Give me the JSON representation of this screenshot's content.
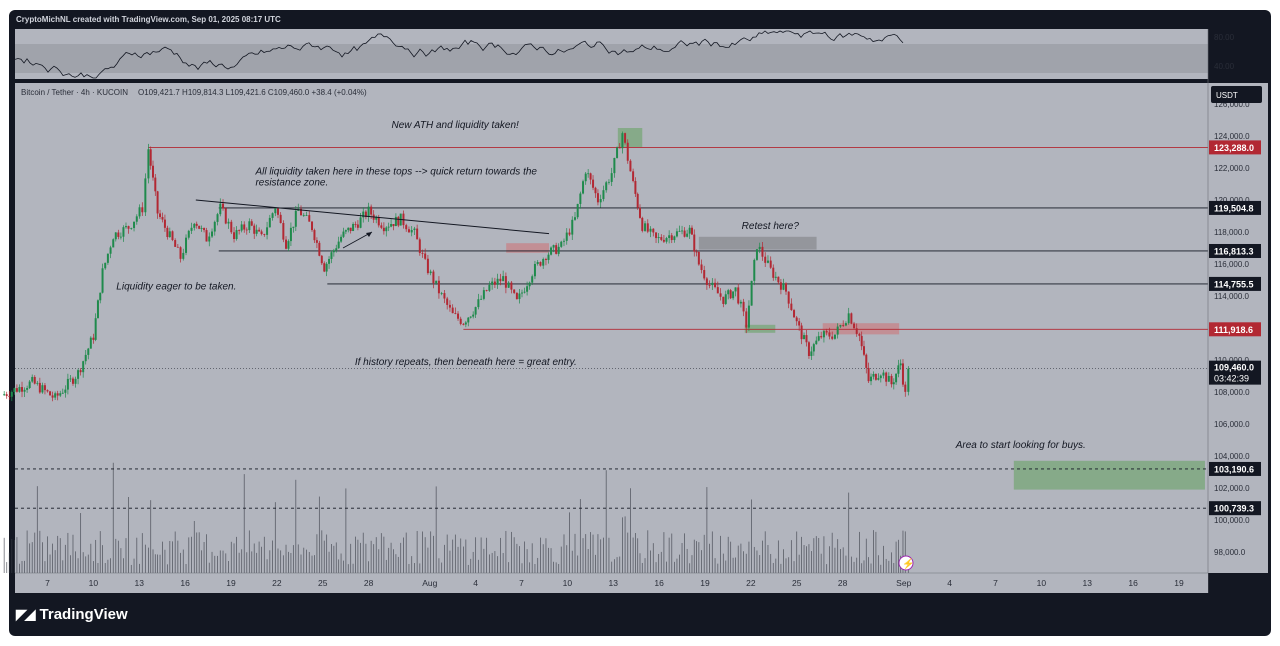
{
  "header": {
    "attribution": "CryptoMichNL created with TradingView.com, Sep 01, 2025 08:17 UTC"
  },
  "footer": {
    "brand": "TradingView",
    "logo_icon": "tradingview-logo-icon"
  },
  "colors": {
    "background": "#b2b5be",
    "frame": "#131722",
    "up": "#1f8a4c",
    "down": "#b22833",
    "green_zone": "#7ea880",
    "red_zone": "#c4888e",
    "gray_zone": "#8e9096"
  },
  "chart_data": {
    "type": "candlestick",
    "symbol_line": "Bitcoin / Tether · 4h · KUCOIN",
    "ohlc_readout": "O109,421.7  H109,814.3  L109,421.6  C109,460.0  +38.4 (+0.04%)",
    "currency": "USDT",
    "last_price": "109,460.0",
    "countdown": "03:42:39",
    "ylim": [
      96500,
      126000
    ],
    "y_ticks": [
      {
        "value": 98000,
        "label": "98,000.0"
      },
      {
        "value": 100000,
        "label": "100,000.0"
      },
      {
        "value": 102000,
        "label": "102,000.0"
      },
      {
        "value": 104000,
        "label": "104,000.0"
      },
      {
        "value": 106000,
        "label": "106,000.0"
      },
      {
        "value": 108000,
        "label": "108,000.0"
      },
      {
        "value": 110000,
        "label": "110,000.0"
      },
      {
        "value": 114000,
        "label": "114,000.0"
      },
      {
        "value": 116000,
        "label": "116,000.0"
      },
      {
        "value": 118000,
        "label": "118,000.0"
      },
      {
        "value": 120000,
        "label": "120,000.0"
      },
      {
        "value": 122000,
        "label": "122,000.0"
      },
      {
        "value": 124000,
        "label": "124,000.0"
      },
      {
        "value": 126000,
        "label": "126,000.0"
      }
    ],
    "x_ticks": [
      {
        "day": 7,
        "label": "7"
      },
      {
        "day": 10,
        "label": "10"
      },
      {
        "day": 13,
        "label": "13"
      },
      {
        "day": 16,
        "label": "16"
      },
      {
        "day": 19,
        "label": "19"
      },
      {
        "day": 22,
        "label": "22"
      },
      {
        "day": 25,
        "label": "25"
      },
      {
        "day": 28,
        "label": "28"
      },
      {
        "day": 32,
        "label": "Aug"
      },
      {
        "day": 35,
        "label": "4"
      },
      {
        "day": 38,
        "label": "7"
      },
      {
        "day": 41,
        "label": "10"
      },
      {
        "day": 44,
        "label": "13"
      },
      {
        "day": 47,
        "label": "16"
      },
      {
        "day": 50,
        "label": "19"
      },
      {
        "day": 53,
        "label": "22"
      },
      {
        "day": 56,
        "label": "25"
      },
      {
        "day": 59,
        "label": "28"
      },
      {
        "day": 63,
        "label": "Sep"
      },
      {
        "day": 66,
        "label": "4"
      },
      {
        "day": 69,
        "label": "7"
      },
      {
        "day": 72,
        "label": "10"
      },
      {
        "day": 75,
        "label": "13"
      },
      {
        "day": 78,
        "label": "16"
      },
      {
        "day": 81,
        "label": "19"
      }
    ],
    "price_path": [
      [
        4,
        107800
      ],
      [
        6,
        108600
      ],
      [
        7.5,
        107600
      ],
      [
        9,
        109200
      ],
      [
        10,
        111500
      ],
      [
        10.6,
        115500
      ],
      [
        11.3,
        117800
      ],
      [
        12.3,
        118300
      ],
      [
        13.2,
        119500
      ],
      [
        13.6,
        123200
      ],
      [
        14.2,
        119200
      ],
      [
        15,
        117700
      ],
      [
        15.7,
        116400
      ],
      [
        16.6,
        118800
      ],
      [
        17.4,
        117600
      ],
      [
        18.3,
        119500
      ],
      [
        19.2,
        117800
      ],
      [
        20.2,
        118500
      ],
      [
        21,
        117600
      ],
      [
        21.9,
        119600
      ],
      [
        22.6,
        117300
      ],
      [
        23.4,
        119400
      ],
      [
        24.3,
        118300
      ],
      [
        25.1,
        115800
      ],
      [
        26.2,
        117700
      ],
      [
        27.3,
        118600
      ],
      [
        28,
        119300
      ],
      [
        29,
        118400
      ],
      [
        30.1,
        118800
      ],
      [
        31,
        117900
      ],
      [
        31.7,
        116000
      ],
      [
        32.6,
        114300
      ],
      [
        33.5,
        112800
      ],
      [
        34.2,
        112400
      ],
      [
        35,
        113300
      ],
      [
        35.9,
        114600
      ],
      [
        36.8,
        115100
      ],
      [
        37.7,
        113600
      ],
      [
        38.7,
        115500
      ],
      [
        39.6,
        116600
      ],
      [
        40.6,
        117100
      ],
      [
        41.5,
        118800
      ],
      [
        42.2,
        121900
      ],
      [
        43,
        120000
      ],
      [
        43.9,
        121700
      ],
      [
        44.6,
        124200
      ],
      [
        45.3,
        121000
      ],
      [
        45.9,
        118400
      ],
      [
        46.8,
        117500
      ],
      [
        48,
        117900
      ],
      [
        49,
        118100
      ],
      [
        49.6,
        116000
      ],
      [
        50.3,
        114700
      ],
      [
        51.2,
        113800
      ],
      [
        52,
        114400
      ],
      [
        52.7,
        112200
      ],
      [
        53.4,
        117200
      ],
      [
        54.3,
        115600
      ],
      [
        55.3,
        114300
      ],
      [
        56,
        112300
      ],
      [
        56.8,
        110500
      ],
      [
        57.6,
        111500
      ],
      [
        58.5,
        111600
      ],
      [
        59.4,
        112900
      ],
      [
        60.1,
        111500
      ],
      [
        60.7,
        108700
      ],
      [
        61.5,
        109300
      ],
      [
        62.2,
        108500
      ],
      [
        62.8,
        109800
      ],
      [
        63.1,
        107800
      ],
      [
        63.3,
        109460
      ]
    ],
    "horizontal_levels": [
      {
        "value": 123288,
        "label": "123,288.0",
        "color": "#b22833",
        "style": "solid",
        "x_start_day": 13.6,
        "label_bg": "#b22833"
      },
      {
        "value": 119504.8,
        "label": "119,504.8",
        "color": "#131722",
        "style": "solid",
        "x_start_day": 18.2,
        "label_bg": "#131722"
      },
      {
        "value": 116813.3,
        "label": "116,813.3",
        "color": "#131722",
        "style": "solid",
        "x_start_day": 18.2,
        "label_bg": "#131722"
      },
      {
        "value": 114755.5,
        "label": "114,755.5",
        "color": "#131722",
        "style": "solid",
        "x_start_day": 25.3,
        "label_bg": "#131722"
      },
      {
        "value": 111918.6,
        "label": "111,918.6",
        "color": "#b22833",
        "style": "solid",
        "x_start_day": 34.2,
        "label_bg": "#b22833"
      },
      {
        "value": 103190.6,
        "label": "103,190.6",
        "color": "#131722",
        "style": "dashed",
        "x_start_day": 0,
        "label_bg": "#131722"
      },
      {
        "value": 100739.3,
        "label": "100,739.3",
        "color": "#131722",
        "style": "dashed",
        "x_start_day": 0,
        "label_bg": "#131722"
      }
    ],
    "zones": [
      {
        "name": "ath-zone",
        "x_days": [
          44.3,
          45.9
        ],
        "y_values": [
          123300,
          124500
        ],
        "color": "#7ea880"
      },
      {
        "name": "retest-zone",
        "x_days": [
          49.6,
          57.3
        ],
        "y_values": [
          116900,
          117700
        ],
        "color": "#8e9096"
      },
      {
        "name": "red-zone-1",
        "x_days": [
          37,
          39.8
        ],
        "y_values": [
          116700,
          117300
        ],
        "color": "#c4888e"
      },
      {
        "name": "red-zone-2",
        "x_days": [
          57.7,
          62.7
        ],
        "y_values": [
          111600,
          112300
        ],
        "color": "#c4888e"
      },
      {
        "name": "green-zone-low",
        "x_days": [
          52.6,
          54.6
        ],
        "y_values": [
          111700,
          112200
        ],
        "color": "#7ea880"
      },
      {
        "name": "buy-zone",
        "x_days": [
          70.2,
          82.7
        ],
        "y_values": [
          101900,
          103700
        ],
        "color": "#7ea880"
      }
    ],
    "trendline": {
      "from": [
        16.7,
        120000
      ],
      "to": [
        39.8,
        117900
      ]
    },
    "annotations": [
      {
        "text": "New ATH and liquidity taken!",
        "day": 29.5,
        "value": 124500
      },
      {
        "text": "All liquidity taken here in these tops --> quick return towards the",
        "day": 20.6,
        "value": 121600
      },
      {
        "text": "resistance zone.",
        "day": 20.6,
        "value": 120900
      },
      {
        "text": "Retest here?",
        "day": 52.4,
        "value": 118200
      },
      {
        "text": "Liquidity eager to be taken.",
        "day": 11.5,
        "value": 114400
      },
      {
        "text": "If history repeats, then beneath here = great entry.",
        "day": 27.1,
        "value": 109700
      },
      {
        "text": "Area to start looking for buys.",
        "day": 66.4,
        "value": 104500
      }
    ],
    "rsi": {
      "ticks": [
        {
          "value": 80,
          "label": "80.00"
        },
        {
          "value": 40,
          "label": "40.00"
        }
      ],
      "band": [
        40,
        70
      ]
    }
  }
}
